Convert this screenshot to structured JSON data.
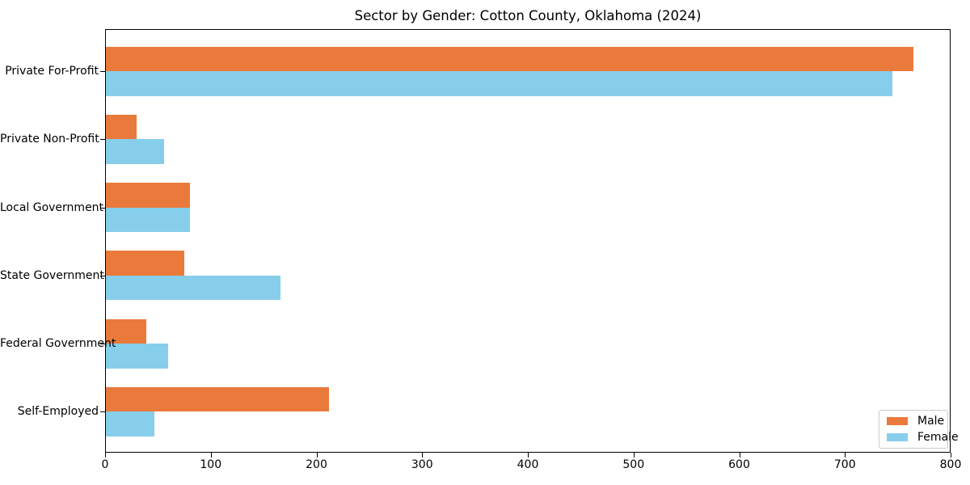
{
  "figure": {
    "background": "#ffffff",
    "axis_color": "#000000",
    "text_color": "#000000"
  },
  "chart_data": {
    "type": "bar",
    "orientation": "horizontal",
    "title": "Sector by Gender: Cotton County, Oklahoma (2024)",
    "categories": [
      "Private For-Profit",
      "Private Non-Profit",
      "Local Government",
      "State Government",
      "Federal Government",
      "Self-Employed"
    ],
    "series": [
      {
        "name": "Male",
        "color": "#EA7A3C",
        "values": [
          765,
          30,
          80,
          75,
          39,
          212
        ]
      },
      {
        "name": "Female",
        "color": "#87CEEB",
        "values": [
          745,
          56,
          80,
          166,
          60,
          47
        ]
      }
    ],
    "xlabel": "",
    "ylabel": "",
    "xlim": [
      0,
      800
    ],
    "xticks": [
      "0",
      "100",
      "200",
      "300",
      "400",
      "500",
      "600",
      "700",
      "800"
    ],
    "grid": false,
    "legend": {
      "position": "lower right",
      "labels": [
        "Male",
        "Female"
      ]
    }
  }
}
